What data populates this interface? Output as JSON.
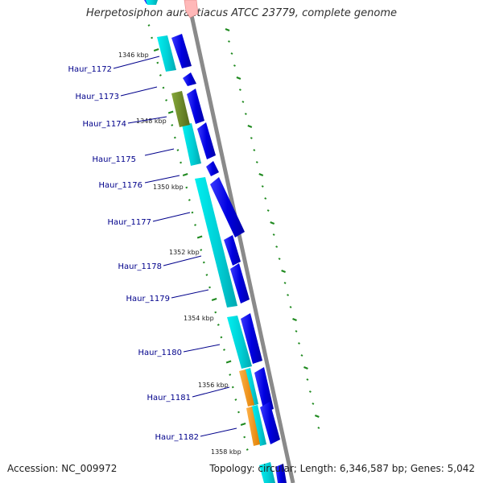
{
  "title": "Herpetosiphon aurantiacus ATCC 23779, complete genome",
  "footer": {
    "accession": "Accession: NC_009972",
    "summary": "Topology: circular; Length: 6,346,587 bp; Genes: 5,042"
  },
  "colors": {
    "backbone": "#8c8c8c",
    "forward_gene": "#0000e6",
    "cds": "#00d0d0",
    "orange_feature": "#ff9900",
    "olive_feature": "#6b8e23",
    "pink_feature": "#ffb0b0",
    "tick": "#228b22",
    "label": "#00008b"
  },
  "gene_labels": [
    "Haur_1172",
    "Haur_1173",
    "Haur_1174",
    "Haur_1175",
    "Haur_1176",
    "Haur_1177",
    "Haur_1178",
    "Haur_1179",
    "Haur_1180",
    "Haur_1181",
    "Haur_1182"
  ],
  "kbp_labels": [
    "1346 kbp",
    "1348 kbp",
    "1350 kbp",
    "1352 kbp",
    "1354 kbp",
    "1356 kbp",
    "1358 kbp"
  ]
}
